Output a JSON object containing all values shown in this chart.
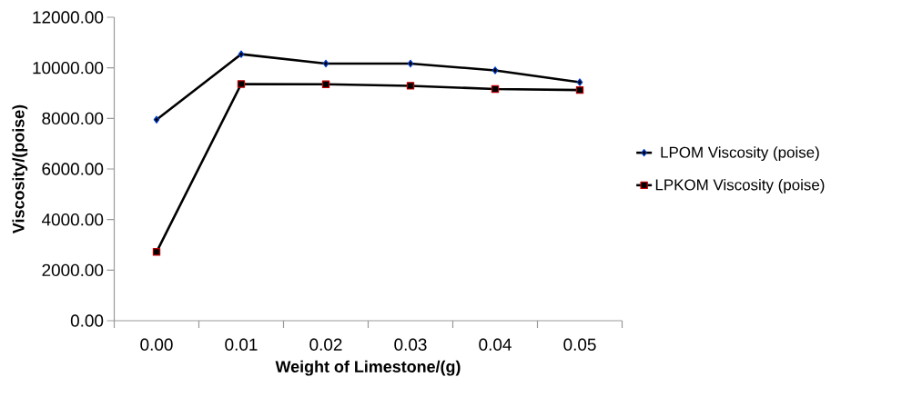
{
  "chart_data": {
    "type": "line",
    "xlabel": "Weight of Limestone/(g)",
    "ylabel": "Viscosity/(poise)",
    "categories": [
      "0.00",
      "0.01",
      "0.02",
      "0.03",
      "0.04",
      "0.05"
    ],
    "series": [
      {
        "name": "LPOM Viscosity (poise)",
        "color": "#000000",
        "marker": "diamond",
        "values": [
          7950,
          10540,
          10170,
          10170,
          9900,
          9430
        ]
      },
      {
        "name": "LPKOM Viscosity (poise)",
        "color": "#000000",
        "marker": "square",
        "values": [
          2720,
          9360,
          9350,
          9290,
          9160,
          9120
        ]
      }
    ],
    "ylim": [
      0,
      12000
    ],
    "yticks": [
      {
        "value": 0,
        "label": "0.00"
      },
      {
        "value": 2000,
        "label": "2000.00"
      },
      {
        "value": 4000,
        "label": "4000.00"
      },
      {
        "value": 6000,
        "label": "6000.00"
      },
      {
        "value": 8000,
        "label": "8000.00"
      },
      {
        "value": 10000,
        "label": "10000.00"
      },
      {
        "value": 12000,
        "label": "12000.00"
      }
    ],
    "grid": false,
    "legend": "right",
    "line_style": "solid"
  }
}
